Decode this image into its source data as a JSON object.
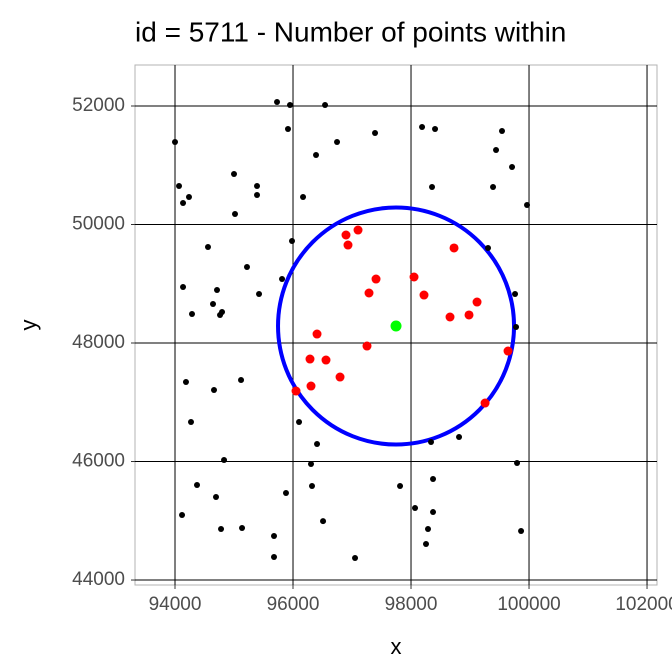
{
  "chart_data": {
    "type": "scatter",
    "title": "id = 5711 - Number of points within",
    "x_label": "x",
    "y_label": "y",
    "xlim": [
      93322,
      102169
    ],
    "ylim": [
      43916,
      52692
    ],
    "xticks": [
      94000,
      96000,
      98000,
      100000,
      102000
    ],
    "yticks": [
      44000,
      46000,
      48000,
      50000,
      52000
    ],
    "grid": true,
    "series": [
      {
        "color": "#000000",
        "size": 3,
        "x": [
          94000,
          94068,
          94136,
          94237,
          94186,
          94136,
          94288,
          94271,
          94373,
          94119,
          94559,
          94644,
          94661,
          94712,
          94763,
          94797,
          94695,
          94780,
          94831,
          95000,
          95017,
          95119,
          95136,
          95220,
          95390,
          95390,
          95424,
          95678,
          95678,
          95729,
          95949,
          95881,
          95915,
          95814,
          95983,
          96102,
          96170,
          96322,
          96305,
          96390,
          96407,
          96509,
          96543,
          96746,
          97051,
          97390,
          97814,
          98068,
          98187,
          98254,
          98288,
          98407,
          98356,
          98339,
          98373,
          98373,
          98814,
          99305,
          99390,
          99441,
          99542,
          99712,
          99763,
          99780,
          99797,
          99865,
          99966
        ],
        "y": [
          51393,
          50650,
          50363,
          50464,
          47342,
          48945,
          48489,
          46667,
          45603,
          45097,
          49620,
          48658,
          47207,
          48894,
          48473,
          48523,
          45401,
          44861,
          46025,
          50853,
          50178,
          47376,
          44877,
          49283,
          50650,
          50498,
          48827,
          44742,
          44388,
          52068,
          52017,
          45468,
          51612,
          49080,
          49722,
          46667,
          50464,
          45586,
          45958,
          51173,
          46295,
          44995,
          52017,
          51393,
          44371,
          51545,
          45586,
          45215,
          51646,
          44607,
          44861,
          51612,
          50633,
          46329,
          45704,
          45147,
          46413,
          49604,
          50633,
          51258,
          51579,
          50971,
          48827,
          48270,
          45974,
          44827,
          50329
        ]
      },
      {
        "color": "#ff0000",
        "size": 4.5,
        "x": [
          96051,
          96305,
          96288,
          96559,
          96407,
          96797,
          97254,
          97288,
          97407,
          96898,
          96932,
          97102,
          98051,
          98220,
          98729,
          98661,
          98983,
          99119,
          99644,
          99255
        ],
        "y": [
          47190,
          47274,
          47730,
          47713,
          48152,
          47426,
          47949,
          48844,
          49080,
          49823,
          49654,
          49907,
          49114,
          48810,
          49604,
          48439,
          48473,
          48692,
          47865,
          46987
        ]
      },
      {
        "color": "#00ff00",
        "size": 5.5,
        "x": [
          97746
        ],
        "y": [
          48287
        ]
      }
    ],
    "circles": [
      {
        "cx": 97746,
        "cy": 48287,
        "r": 2000,
        "color": "#0000ff"
      }
    ]
  }
}
